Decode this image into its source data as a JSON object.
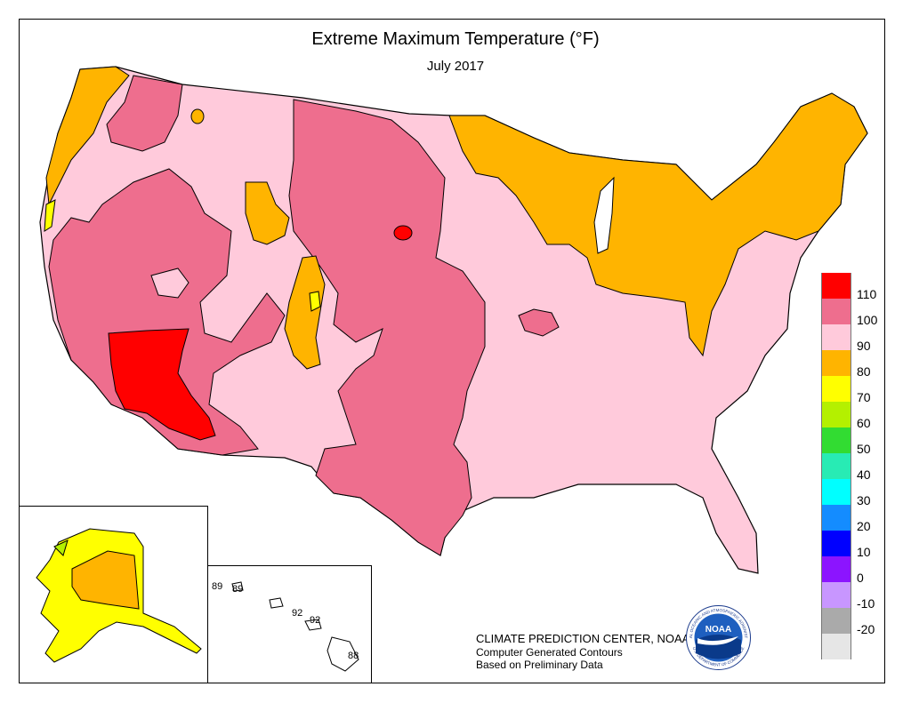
{
  "title": "Extreme Maximum Temperature (°F)",
  "subtitle": "July 2017",
  "legend": {
    "bins": [
      {
        "label": "110",
        "color": "#ff0000"
      },
      {
        "label": "100",
        "color": "#ee6e8e"
      },
      {
        "label": "90",
        "color": "#ffcadb"
      },
      {
        "label": "80",
        "color": "#ffb400"
      },
      {
        "label": "70",
        "color": "#ffff00"
      },
      {
        "label": "60",
        "color": "#b4f000"
      },
      {
        "label": "50",
        "color": "#32dc32"
      },
      {
        "label": "40",
        "color": "#28ebb4"
      },
      {
        "label": "30",
        "color": "#00ffff"
      },
      {
        "label": "20",
        "color": "#148cff"
      },
      {
        "label": "10",
        "color": "#0000ff"
      },
      {
        "label": "0",
        "color": "#8c14ff"
      },
      {
        "label": "-10",
        "color": "#c896ff"
      },
      {
        "label": "-20",
        "color": "#aaaaaa"
      },
      {
        "label": "",
        "color": "#e6e6e6"
      }
    ]
  },
  "hawaii_labels": [
    "89",
    "89",
    "92",
    "92",
    "88"
  ],
  "credits": {
    "line1": "CLIMATE PREDICTION CENTER, NOAA",
    "line2": "Computer Generated Contours",
    "line3": "Based on Preliminary Data"
  },
  "logo": {
    "text": "NOAA",
    "ring_top": "NATIONAL OCEANIC AND ATMOSPHERIC ADMINISTRATION",
    "ring_bottom": "U.S. DEPARTMENT OF COMMERCE"
  }
}
